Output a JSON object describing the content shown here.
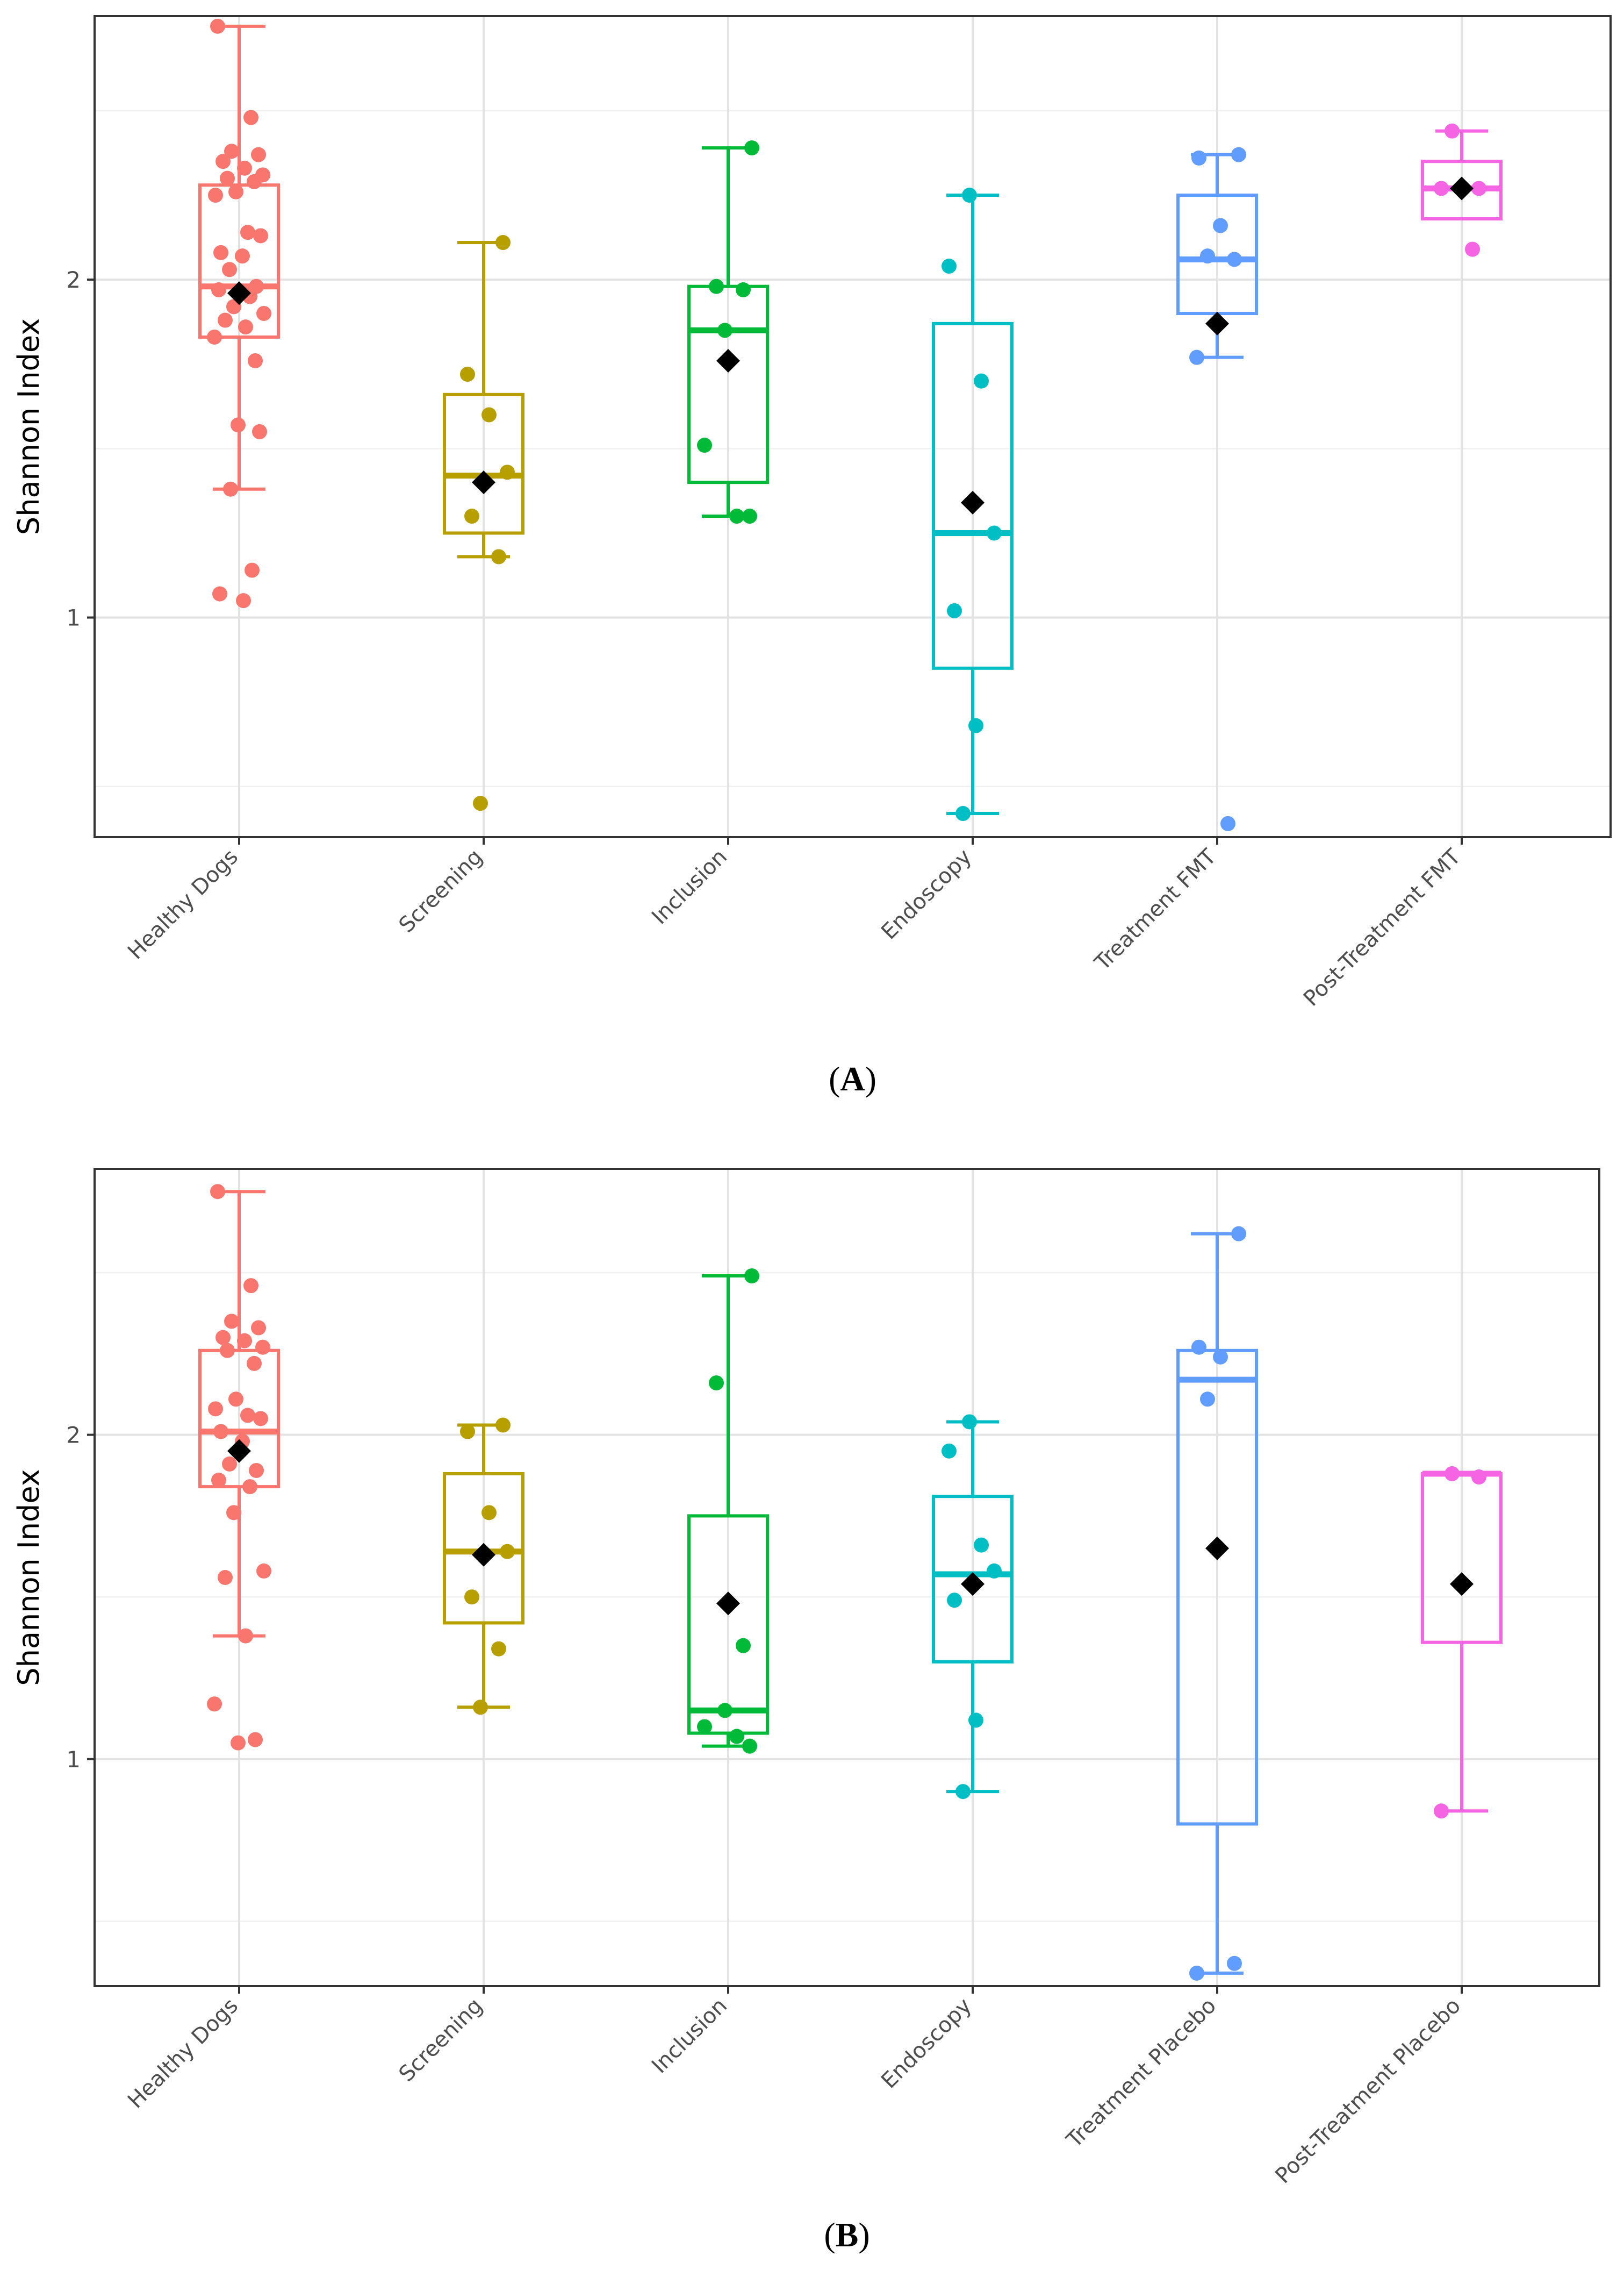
{
  "chart_data": [
    {
      "type": "box",
      "panel_label": "A",
      "ylabel": "Shannon Index",
      "xlabel": "",
      "ylim": [
        0.35,
        2.78
      ],
      "yticks": [
        1,
        2
      ],
      "ytick_labels": [
        "1",
        "2"
      ],
      "grid": true,
      "categories": [
        "Healthy Dogs",
        "Screening",
        "Inclusion",
        "Endoscopy",
        "Treatment FMT",
        "Post-Treatment FMT"
      ],
      "colors": [
        "#F8766D",
        "#B79F00",
        "#00BA38",
        "#00BFC4",
        "#619CFF",
        "#F564E3"
      ],
      "boxes": [
        {
          "group": "Healthy Dogs",
          "whisker_low": 1.38,
          "q1": 1.83,
          "median": 1.98,
          "q3": 2.28,
          "whisker_high": 2.75,
          "mean": 1.96
        },
        {
          "group": "Screening",
          "whisker_low": 1.18,
          "q1": 1.25,
          "median": 1.42,
          "q3": 1.66,
          "whisker_high": 2.11,
          "mean": 1.4
        },
        {
          "group": "Inclusion",
          "whisker_low": 1.3,
          "q1": 1.4,
          "median": 1.85,
          "q3": 1.98,
          "whisker_high": 2.39,
          "mean": 1.76
        },
        {
          "group": "Endoscopy",
          "whisker_low": 0.42,
          "q1": 0.85,
          "median": 1.25,
          "q3": 1.87,
          "whisker_high": 2.25,
          "mean": 1.34
        },
        {
          "group": "Treatment FMT",
          "whisker_low": 1.77,
          "q1": 1.9,
          "median": 2.06,
          "q3": 2.25,
          "whisker_high": 2.37,
          "mean": 1.87
        },
        {
          "group": "Post-Treatment FMT",
          "whisker_low": 2.18,
          "q1": 2.18,
          "median": 2.27,
          "q3": 2.35,
          "whisker_high": 2.44,
          "mean": 2.27
        }
      ],
      "points": [
        {
          "group": "Healthy Dogs",
          "values": [
            2.75,
            2.48,
            2.38,
            2.37,
            2.35,
            2.33,
            2.31,
            2.3,
            2.29,
            2.26,
            2.25,
            2.14,
            2.13,
            2.08,
            2.07,
            2.03,
            1.98,
            1.97,
            1.95,
            1.92,
            1.9,
            1.88,
            1.86,
            1.83,
            1.76,
            1.57,
            1.55,
            1.38,
            1.14,
            1.07,
            1.05
          ]
        },
        {
          "group": "Screening",
          "values": [
            2.11,
            1.72,
            1.6,
            1.43,
            1.3,
            1.18,
            0.45
          ]
        },
        {
          "group": "Inclusion",
          "values": [
            2.39,
            1.98,
            1.97,
            1.85,
            1.51,
            1.3,
            1.3
          ]
        },
        {
          "group": "Endoscopy",
          "values": [
            2.25,
            2.04,
            1.7,
            1.25,
            1.02,
            0.68,
            0.42
          ]
        },
        {
          "group": "Treatment FMT",
          "values": [
            2.37,
            2.36,
            2.16,
            2.07,
            2.06,
            1.77,
            0.39
          ]
        },
        {
          "group": "Post-Treatment FMT",
          "values": [
            2.44,
            2.27,
            2.27,
            2.09
          ]
        }
      ]
    },
    {
      "type": "box",
      "panel_label": "B",
      "ylabel": "Shannon Index",
      "xlabel": "",
      "ylim": [
        0.3,
        2.82
      ],
      "yticks": [
        1,
        2
      ],
      "ytick_labels": [
        "1",
        "2"
      ],
      "grid": true,
      "categories": [
        "Healthy Dogs",
        "Screening",
        "Inclusion",
        "Endoscopy",
        "Treatment Placebo",
        "Post-Treatment Placebo"
      ],
      "colors": [
        "#F8766D",
        "#B79F00",
        "#00BA38",
        "#00BFC4",
        "#619CFF",
        "#F564E3"
      ],
      "boxes": [
        {
          "group": "Healthy Dogs",
          "whisker_low": 1.38,
          "q1": 1.84,
          "median": 2.01,
          "q3": 2.26,
          "whisker_high": 2.75,
          "mean": 1.95
        },
        {
          "group": "Screening",
          "whisker_low": 1.16,
          "q1": 1.42,
          "median": 1.64,
          "q3": 1.88,
          "whisker_high": 2.03,
          "mean": 1.63
        },
        {
          "group": "Inclusion",
          "whisker_low": 1.04,
          "q1": 1.08,
          "median": 1.15,
          "q3": 1.75,
          "whisker_high": 2.49,
          "mean": 1.48
        },
        {
          "group": "Endoscopy",
          "whisker_low": 0.9,
          "q1": 1.3,
          "median": 1.57,
          "q3": 1.81,
          "whisker_high": 2.04,
          "mean": 1.54
        },
        {
          "group": "Treatment Placebo",
          "whisker_low": 0.34,
          "q1": 0.8,
          "median": 2.17,
          "q3": 2.26,
          "whisker_high": 2.62,
          "mean": 1.65
        },
        {
          "group": "Post-Treatment Placebo",
          "whisker_low": 0.84,
          "q1": 1.36,
          "median": 1.88,
          "q3": 1.88,
          "whisker_high": 1.88,
          "mean": 1.54
        }
      ],
      "points": [
        {
          "group": "Healthy Dogs",
          "values": [
            2.75,
            2.46,
            2.35,
            2.33,
            2.3,
            2.29,
            2.27,
            2.26,
            2.22,
            2.11,
            2.08,
            2.06,
            2.05,
            2.01,
            1.98,
            1.91,
            1.89,
            1.86,
            1.84,
            1.76,
            1.58,
            1.56,
            1.38,
            1.17,
            1.06,
            1.05
          ]
        },
        {
          "group": "Screening",
          "values": [
            2.03,
            2.01,
            1.76,
            1.64,
            1.5,
            1.34,
            1.16
          ]
        },
        {
          "group": "Inclusion",
          "values": [
            2.49,
            2.16,
            1.35,
            1.15,
            1.1,
            1.07,
            1.04
          ]
        },
        {
          "group": "Endoscopy",
          "values": [
            2.04,
            1.95,
            1.66,
            1.58,
            1.49,
            1.12,
            0.9
          ]
        },
        {
          "group": "Treatment Placebo",
          "values": [
            2.62,
            2.27,
            2.24,
            2.11,
            0.37,
            0.34
          ]
        },
        {
          "group": "Post-Treatment Placebo",
          "values": [
            1.88,
            1.87,
            0.84
          ]
        }
      ]
    }
  ]
}
